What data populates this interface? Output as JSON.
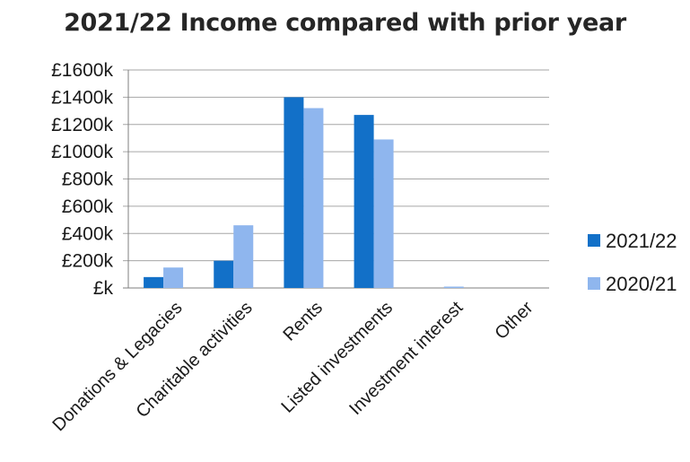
{
  "chart_data": {
    "type": "bar",
    "title": "2021/22 Income compared with prior year",
    "categories": [
      "Donations & Legacies",
      "Charitable activities",
      "Rents",
      "Listed investments",
      "Investment interest",
      "Other"
    ],
    "series": [
      {
        "name": "2021/22",
        "values": [
          80,
          200,
          1400,
          1270,
          0,
          0
        ]
      },
      {
        "name": "2020/21",
        "values": [
          150,
          460,
          1320,
          1090,
          10,
          0
        ]
      }
    ],
    "ylim": [
      0,
      1600
    ],
    "yticks": [
      0,
      200,
      400,
      600,
      800,
      1000,
      1200,
      1400,
      1600
    ],
    "ytick_labels": [
      "£k",
      "£200k",
      "£400k",
      "£600k",
      "£800k",
      "£1000k",
      "£1200k",
      "£1400k",
      "£1600k"
    ],
    "xlabel": "",
    "ylabel": "",
    "grid": true,
    "legend_position": "right",
    "colors": [
      "#1270c8",
      "#8fb6ee"
    ]
  }
}
